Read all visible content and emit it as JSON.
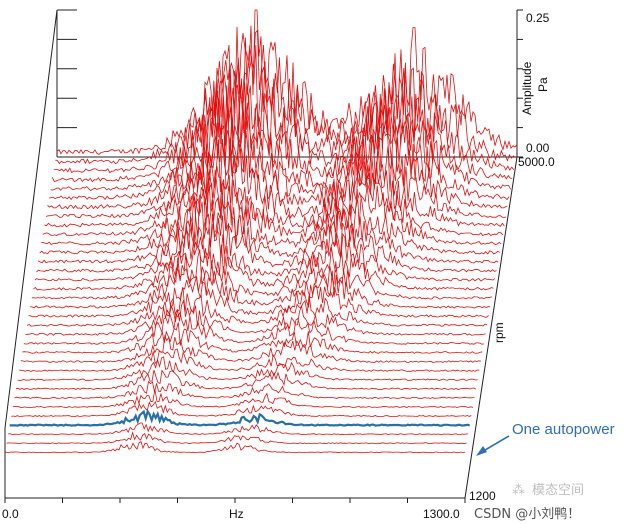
{
  "chart_data": {
    "type": "waterfall",
    "chart_type": "line",
    "title": "",
    "x_axis": {
      "label": "Hz",
      "min": 0.0,
      "max": 1300.0,
      "tick_labels": [
        "0.0",
        "Hz",
        "1300.0"
      ]
    },
    "y_axis": {
      "label": "Amplitude\nPa",
      "label_line1": "Amplitude",
      "label_line2": "Pa",
      "min": 0.0,
      "max": 0.25,
      "tick_labels": [
        "0.25",
        "0.00"
      ]
    },
    "z_axis": {
      "label": "rpm",
      "min": 1200,
      "max": 5000,
      "tick_labels": [
        "5000.0",
        "1200"
      ]
    },
    "trace_count": 34,
    "trace_color": "#e01010",
    "highlight_color": "#2a6fa8",
    "highlighted_trace_index": 3,
    "annotation": {
      "text": "One autopower",
      "color": "#2f6fb8"
    },
    "orders": [
      {
        "base_hz_at_max_rpm": 560,
        "peak_amplitude_at_max_rpm": 0.25
      },
      {
        "base_hz_at_max_rpm": 1010,
        "peak_amplitude_at_max_rpm": 0.22
      }
    ],
    "grid": false,
    "legend": "none"
  },
  "watermark": {
    "brand": "模态空间",
    "source": "CSDN @小刘鸭！"
  }
}
